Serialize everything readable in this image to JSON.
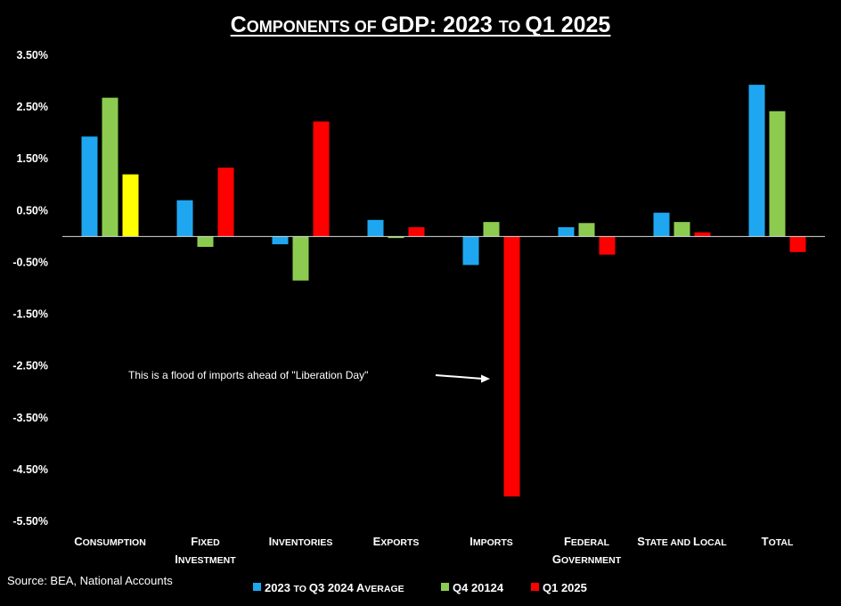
{
  "chart_data": {
    "type": "bar",
    "title": "Components of GDP: 2023 to Q1 2025",
    "xlabel": "",
    "ylabel": "",
    "ylim": [
      -5.5,
      3.5
    ],
    "yticks": [
      "3.50%",
      "2.50%",
      "1.50%",
      "0.50%",
      "-0.50%",
      "-1.50%",
      "-2.50%",
      "-3.50%",
      "-4.50%",
      "-5.50%"
    ],
    "ytick_values": [
      3.5,
      2.5,
      1.5,
      0.5,
      -0.5,
      -1.5,
      -2.5,
      -3.5,
      -4.5,
      -5.5
    ],
    "categories": [
      "Consumption",
      "Fixed Investment",
      "Inventories",
      "Exports",
      "Imports",
      "Federal Government",
      "State and Local",
      "Total"
    ],
    "category_lines": [
      [
        "Consumption"
      ],
      [
        "Fixed",
        "Investment"
      ],
      [
        "Inventories"
      ],
      [
        "Exports"
      ],
      [
        "Imports"
      ],
      [
        "Federal",
        "Government"
      ],
      [
        "State and Local"
      ],
      [
        "Total"
      ]
    ],
    "series": [
      {
        "name": "2023 to Q3 2024 Average",
        "color": "#1EA7F0",
        "values": [
          1.93,
          0.7,
          -0.15,
          0.32,
          -0.55,
          0.18,
          0.46,
          2.93
        ]
      },
      {
        "name": "Q4 20124",
        "color": "#8CCB50",
        "values": [
          2.68,
          -0.2,
          -0.85,
          -0.03,
          0.28,
          0.26,
          0.28,
          2.42
        ]
      },
      {
        "name": "Q1 2025",
        "color": "#FF0000",
        "values": [
          1.2,
          1.33,
          2.22,
          0.18,
          -5.02,
          -0.35,
          0.08,
          -0.3
        ],
        "point_colors": [
          "#FFFF00",
          null,
          null,
          null,
          null,
          null,
          null,
          null
        ]
      }
    ],
    "legend_position": "bottom",
    "annotation": "This is a flood of imports ahead of \"Liberation Day\"",
    "source": "Source: BEA, National Accounts"
  },
  "colors": {
    "background": "#000000",
    "text": "#FFFFFF",
    "zero_line": "#D9D9D9"
  }
}
